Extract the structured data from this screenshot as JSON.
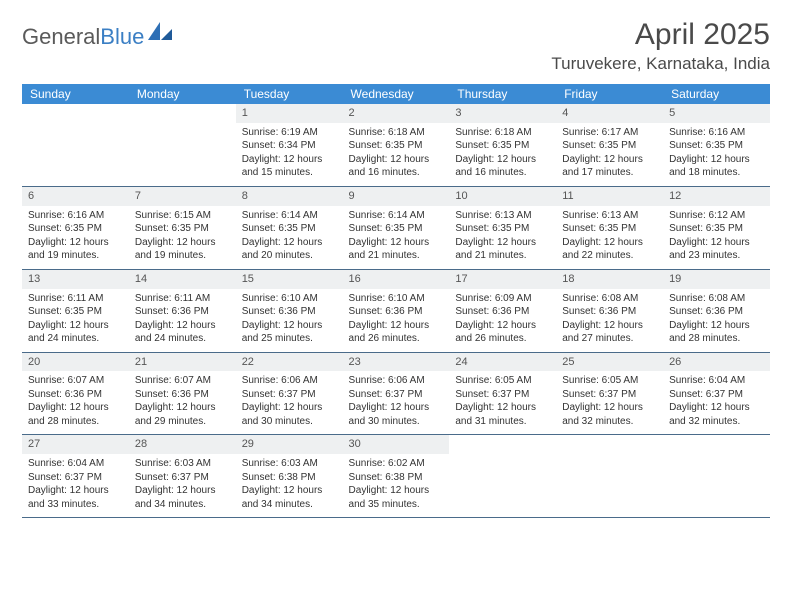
{
  "brand": {
    "part1": "General",
    "part2": "Blue"
  },
  "header": {
    "title": "April 2025",
    "location": "Turuvekere, Karnataka, India"
  },
  "colors": {
    "header_bg": "#3b8bd4",
    "header_text": "#ffffff",
    "daynum_bg": "#eef0f1",
    "cell_border": "#4a6b8a",
    "body_text": "#333333",
    "title_text": "#4a4a4a",
    "logo_gray": "#5a5a5a",
    "logo_blue": "#3b7fc4"
  },
  "typography": {
    "title_fontsize": 30,
    "location_fontsize": 17,
    "dayhead_fontsize": 12,
    "daynum_fontsize": 11,
    "cell_fontsize": 10
  },
  "days": [
    "Sunday",
    "Monday",
    "Tuesday",
    "Wednesday",
    "Thursday",
    "Friday",
    "Saturday"
  ],
  "weeks": [
    [
      {
        "empty": true
      },
      {
        "empty": true
      },
      {
        "n": "1",
        "sunrise": "Sunrise: 6:19 AM",
        "sunset": "Sunset: 6:34 PM",
        "d1": "Daylight: 12 hours",
        "d2": "and 15 minutes."
      },
      {
        "n": "2",
        "sunrise": "Sunrise: 6:18 AM",
        "sunset": "Sunset: 6:35 PM",
        "d1": "Daylight: 12 hours",
        "d2": "and 16 minutes."
      },
      {
        "n": "3",
        "sunrise": "Sunrise: 6:18 AM",
        "sunset": "Sunset: 6:35 PM",
        "d1": "Daylight: 12 hours",
        "d2": "and 16 minutes."
      },
      {
        "n": "4",
        "sunrise": "Sunrise: 6:17 AM",
        "sunset": "Sunset: 6:35 PM",
        "d1": "Daylight: 12 hours",
        "d2": "and 17 minutes."
      },
      {
        "n": "5",
        "sunrise": "Sunrise: 6:16 AM",
        "sunset": "Sunset: 6:35 PM",
        "d1": "Daylight: 12 hours",
        "d2": "and 18 minutes."
      }
    ],
    [
      {
        "n": "6",
        "sunrise": "Sunrise: 6:16 AM",
        "sunset": "Sunset: 6:35 PM",
        "d1": "Daylight: 12 hours",
        "d2": "and 19 minutes."
      },
      {
        "n": "7",
        "sunrise": "Sunrise: 6:15 AM",
        "sunset": "Sunset: 6:35 PM",
        "d1": "Daylight: 12 hours",
        "d2": "and 19 minutes."
      },
      {
        "n": "8",
        "sunrise": "Sunrise: 6:14 AM",
        "sunset": "Sunset: 6:35 PM",
        "d1": "Daylight: 12 hours",
        "d2": "and 20 minutes."
      },
      {
        "n": "9",
        "sunrise": "Sunrise: 6:14 AM",
        "sunset": "Sunset: 6:35 PM",
        "d1": "Daylight: 12 hours",
        "d2": "and 21 minutes."
      },
      {
        "n": "10",
        "sunrise": "Sunrise: 6:13 AM",
        "sunset": "Sunset: 6:35 PM",
        "d1": "Daylight: 12 hours",
        "d2": "and 21 minutes."
      },
      {
        "n": "11",
        "sunrise": "Sunrise: 6:13 AM",
        "sunset": "Sunset: 6:35 PM",
        "d1": "Daylight: 12 hours",
        "d2": "and 22 minutes."
      },
      {
        "n": "12",
        "sunrise": "Sunrise: 6:12 AM",
        "sunset": "Sunset: 6:35 PM",
        "d1": "Daylight: 12 hours",
        "d2": "and 23 minutes."
      }
    ],
    [
      {
        "n": "13",
        "sunrise": "Sunrise: 6:11 AM",
        "sunset": "Sunset: 6:35 PM",
        "d1": "Daylight: 12 hours",
        "d2": "and 24 minutes."
      },
      {
        "n": "14",
        "sunrise": "Sunrise: 6:11 AM",
        "sunset": "Sunset: 6:36 PM",
        "d1": "Daylight: 12 hours",
        "d2": "and 24 minutes."
      },
      {
        "n": "15",
        "sunrise": "Sunrise: 6:10 AM",
        "sunset": "Sunset: 6:36 PM",
        "d1": "Daylight: 12 hours",
        "d2": "and 25 minutes."
      },
      {
        "n": "16",
        "sunrise": "Sunrise: 6:10 AM",
        "sunset": "Sunset: 6:36 PM",
        "d1": "Daylight: 12 hours",
        "d2": "and 26 minutes."
      },
      {
        "n": "17",
        "sunrise": "Sunrise: 6:09 AM",
        "sunset": "Sunset: 6:36 PM",
        "d1": "Daylight: 12 hours",
        "d2": "and 26 minutes."
      },
      {
        "n": "18",
        "sunrise": "Sunrise: 6:08 AM",
        "sunset": "Sunset: 6:36 PM",
        "d1": "Daylight: 12 hours",
        "d2": "and 27 minutes."
      },
      {
        "n": "19",
        "sunrise": "Sunrise: 6:08 AM",
        "sunset": "Sunset: 6:36 PM",
        "d1": "Daylight: 12 hours",
        "d2": "and 28 minutes."
      }
    ],
    [
      {
        "n": "20",
        "sunrise": "Sunrise: 6:07 AM",
        "sunset": "Sunset: 6:36 PM",
        "d1": "Daylight: 12 hours",
        "d2": "and 28 minutes."
      },
      {
        "n": "21",
        "sunrise": "Sunrise: 6:07 AM",
        "sunset": "Sunset: 6:36 PM",
        "d1": "Daylight: 12 hours",
        "d2": "and 29 minutes."
      },
      {
        "n": "22",
        "sunrise": "Sunrise: 6:06 AM",
        "sunset": "Sunset: 6:37 PM",
        "d1": "Daylight: 12 hours",
        "d2": "and 30 minutes."
      },
      {
        "n": "23",
        "sunrise": "Sunrise: 6:06 AM",
        "sunset": "Sunset: 6:37 PM",
        "d1": "Daylight: 12 hours",
        "d2": "and 30 minutes."
      },
      {
        "n": "24",
        "sunrise": "Sunrise: 6:05 AM",
        "sunset": "Sunset: 6:37 PM",
        "d1": "Daylight: 12 hours",
        "d2": "and 31 minutes."
      },
      {
        "n": "25",
        "sunrise": "Sunrise: 6:05 AM",
        "sunset": "Sunset: 6:37 PM",
        "d1": "Daylight: 12 hours",
        "d2": "and 32 minutes."
      },
      {
        "n": "26",
        "sunrise": "Sunrise: 6:04 AM",
        "sunset": "Sunset: 6:37 PM",
        "d1": "Daylight: 12 hours",
        "d2": "and 32 minutes."
      }
    ],
    [
      {
        "n": "27",
        "sunrise": "Sunrise: 6:04 AM",
        "sunset": "Sunset: 6:37 PM",
        "d1": "Daylight: 12 hours",
        "d2": "and 33 minutes."
      },
      {
        "n": "28",
        "sunrise": "Sunrise: 6:03 AM",
        "sunset": "Sunset: 6:37 PM",
        "d1": "Daylight: 12 hours",
        "d2": "and 34 minutes."
      },
      {
        "n": "29",
        "sunrise": "Sunrise: 6:03 AM",
        "sunset": "Sunset: 6:38 PM",
        "d1": "Daylight: 12 hours",
        "d2": "and 34 minutes."
      },
      {
        "n": "30",
        "sunrise": "Sunrise: 6:02 AM",
        "sunset": "Sunset: 6:38 PM",
        "d1": "Daylight: 12 hours",
        "d2": "and 35 minutes."
      },
      {
        "empty": true
      },
      {
        "empty": true
      },
      {
        "empty": true
      }
    ]
  ]
}
